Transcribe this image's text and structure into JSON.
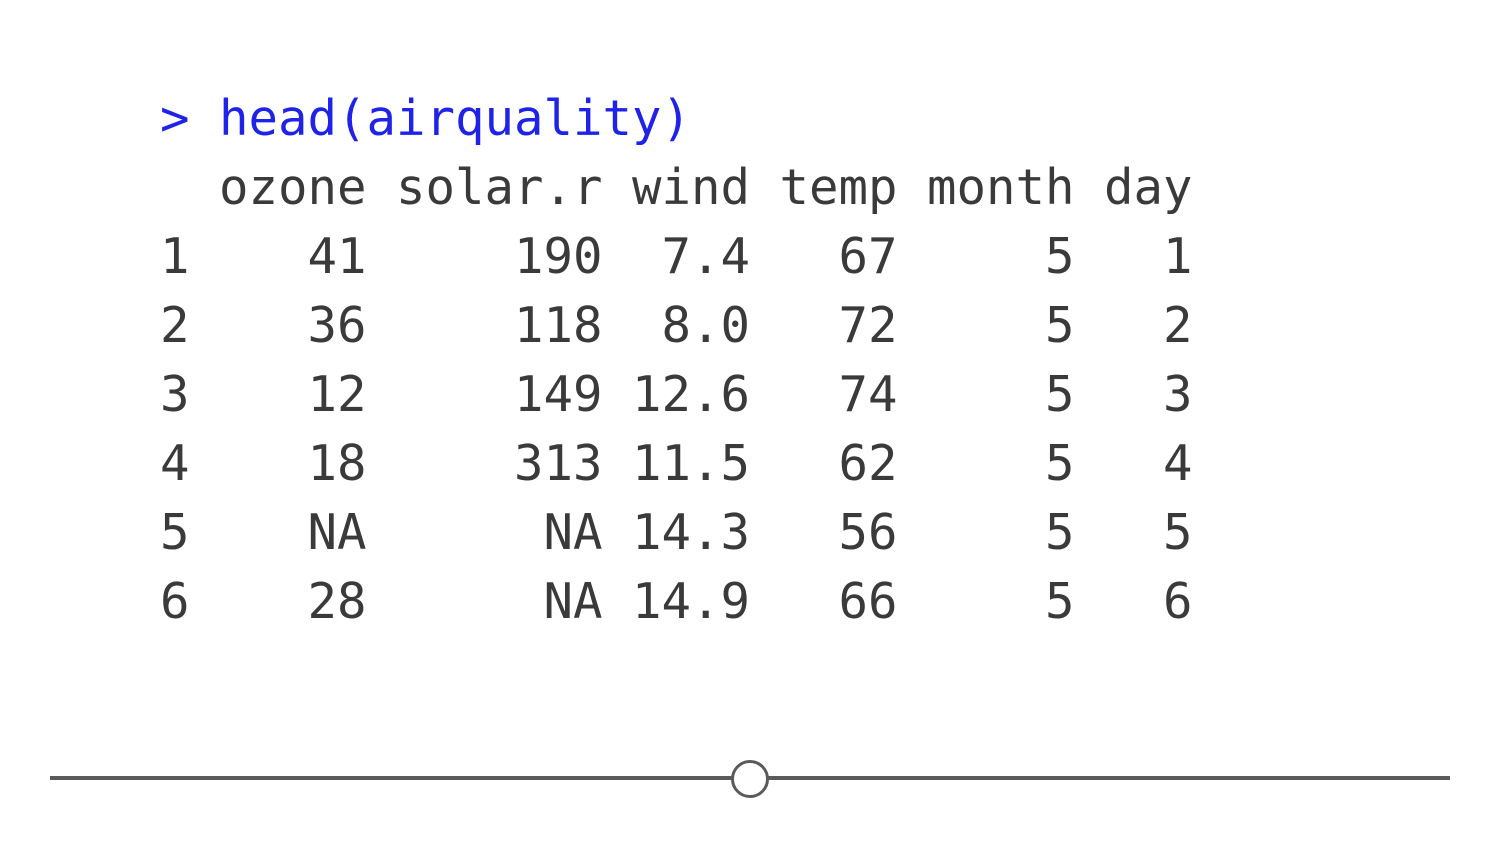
{
  "console": {
    "prompt": "> ",
    "command": "head(airquality)",
    "header_row": "  ozone solar.r wind temp month day",
    "rows": [
      "1    41     190  7.4   67     5   1",
      "2    36     118  8.0   72     5   2",
      "3    12     149 12.6   74     5   3",
      "4    18     313 11.5   62     5   4",
      "5    NA      NA 14.3   56     5   5",
      "6    28      NA 14.9   66     5   6"
    ]
  },
  "colors": {
    "command": "#1f22e8",
    "output": "#3a3a3a",
    "slider": "#5a5a5a"
  },
  "slider": {
    "position_fraction": 0.5
  }
}
